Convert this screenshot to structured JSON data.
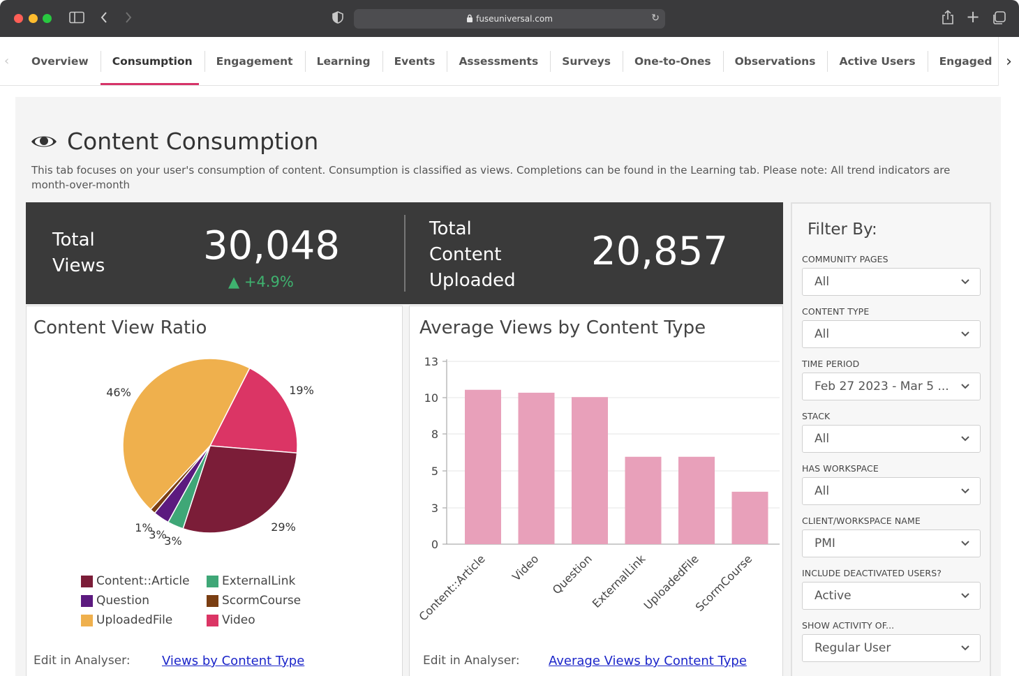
{
  "browser": {
    "url": "fuseuniversal.com"
  },
  "tabs": [
    {
      "label": "Overview",
      "active": false
    },
    {
      "label": "Consumption",
      "active": true
    },
    {
      "label": "Engagement",
      "active": false
    },
    {
      "label": "Learning",
      "active": false
    },
    {
      "label": "Events",
      "active": false
    },
    {
      "label": "Assessments",
      "active": false
    },
    {
      "label": "Surveys",
      "active": false
    },
    {
      "label": "One-to-Ones",
      "active": false
    },
    {
      "label": "Observations",
      "active": false
    },
    {
      "label": "Active Users",
      "active": false
    },
    {
      "label": "Engaged Users Overview",
      "active": false
    }
  ],
  "page": {
    "title": "Content Consumption",
    "description": "This tab focuses on your user's consumption of content. Consumption is classified as views. Completions can be found in the Learning tab. Please note: All trend indicators are month-over-month"
  },
  "kpis": {
    "total_views_label": "Total Views",
    "total_views_value": "30,048",
    "total_views_delta": "+4.9%",
    "total_content_label": "Total Content Uploaded",
    "total_content_value": "20,857"
  },
  "chart_data": [
    {
      "type": "pie",
      "title": "Content View Ratio",
      "slices": [
        {
          "name": "Video",
          "value": 19,
          "label": "19%",
          "color": "#db3565"
        },
        {
          "name": "Content::Article",
          "value": 29,
          "label": "29%",
          "color": "#7b1d38"
        },
        {
          "name": "ExternalLink",
          "value": 3,
          "label": "3%",
          "color": "#3fa777"
        },
        {
          "name": "Question",
          "value": 3,
          "label": "3%",
          "color": "#5c1a7f"
        },
        {
          "name": "ScormCourse",
          "value": 1,
          "label": "1%",
          "color": "#7a3e12"
        },
        {
          "name": "UploadedFile",
          "value": 46,
          "label": "46%",
          "color": "#efb04d"
        }
      ],
      "legend": [
        "Content::Article",
        "ExternalLink",
        "Question",
        "ScormCourse",
        "UploadedFile",
        "Video"
      ],
      "edit_label": "Edit in Analyser:",
      "edit_link": "Views by Content Type"
    },
    {
      "type": "bar",
      "title": "Average Views by Content Type",
      "categories": [
        "Content::Article",
        "Video",
        "Question",
        "ExternalLink",
        "UploadedFile",
        "ScormCourse"
      ],
      "values": [
        10.6,
        10.4,
        10.1,
        6.0,
        6.0,
        3.6
      ],
      "yticks": [
        "0",
        "3",
        "5",
        "8",
        "10",
        "13"
      ],
      "ylim": [
        0,
        12.6
      ],
      "bar_color": "#e8a0ba",
      "edit_label": "Edit in Analyser:",
      "edit_link": "Average Views by Content Type"
    }
  ],
  "filter": {
    "title": "Filter By:",
    "groups": [
      {
        "label": "COMMUNITY PAGES",
        "value": "All"
      },
      {
        "label": "CONTENT TYPE",
        "value": "All"
      },
      {
        "label": "TIME PERIOD",
        "value": "Feb 27 2023 - Mar 5 ..."
      },
      {
        "label": "STACK",
        "value": "All"
      },
      {
        "label": "HAS WORKSPACE",
        "value": "All"
      },
      {
        "label": "CLIENT/WORKSPACE NAME",
        "value": "PMI"
      },
      {
        "label": "INCLUDE DEACTIVATED USERS?",
        "value": "Active"
      },
      {
        "label": "SHOW ACTIVITY OF...",
        "value": "Regular User"
      }
    ]
  }
}
